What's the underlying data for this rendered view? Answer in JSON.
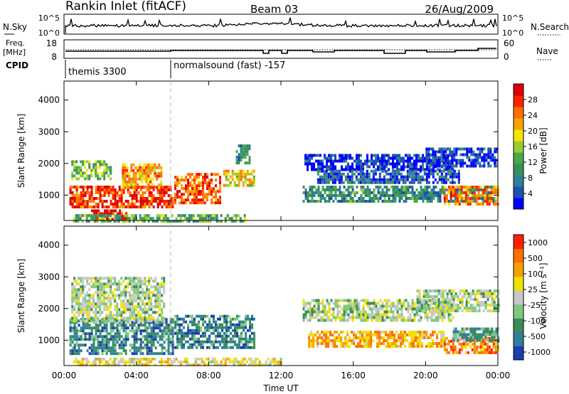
{
  "header": {
    "station": "Rankin Inlet (fitACF)",
    "beam": "Beam 03",
    "date": "26/Aug/2009"
  },
  "nsky_panel": {
    "label": "N.Sky",
    "right_label": "N.Search",
    "y_ticks": [
      "10^5",
      "10^0"
    ],
    "right_ticks": [
      "10^5",
      "10^0"
    ]
  },
  "freq_panel": {
    "label_line1": "Freq.",
    "label_line2": "[MHz]",
    "right_label": "Nave",
    "y_ticks": [
      "18",
      "8"
    ],
    "right_ticks": [
      "60",
      "0"
    ]
  },
  "cpid": {
    "label": "CPID",
    "segments": [
      {
        "start_hour": 0,
        "text": "themis 3300"
      },
      {
        "start_hour": 6,
        "text": "normalsound (fast) -157"
      }
    ]
  },
  "chart_data": [
    {
      "type": "heatmap",
      "title": "",
      "ylabel": "Slant Range [km]",
      "y_ticks": [
        1000,
        2000,
        3000,
        4000
      ],
      "ylim": [
        200,
        4600
      ],
      "x_ticks": [
        "00:00",
        "04:00",
        "08:00",
        "12:00",
        "16:00",
        "20:00",
        "00:00"
      ],
      "xlim_hours": [
        0,
        24
      ],
      "colorbar": {
        "label": "Power [dB]",
        "ticks": [
          "4",
          "8",
          "12",
          "16",
          "20",
          "24",
          "28"
        ],
        "colors": [
          "#0000ff",
          "#1f4fb0",
          "#2f7f9a",
          "#3b8f5a",
          "#46aa46",
          "#9acd32",
          "#f2e600",
          "#f5a300",
          "#ff7000",
          "#ff2000",
          "#dd0000"
        ]
      },
      "regions": [
        {
          "h0": 0.3,
          "h1": 6.0,
          "r0": 600,
          "r1": 1300,
          "level": 0.85
        },
        {
          "h0": 0.4,
          "h1": 2.6,
          "r0": 1500,
          "r1": 2100,
          "level": 0.45
        },
        {
          "h0": 3.2,
          "h1": 5.4,
          "r0": 1200,
          "r1": 2000,
          "level": 0.7
        },
        {
          "h0": 6.1,
          "h1": 8.6,
          "r0": 800,
          "r1": 1700,
          "level": 0.8
        },
        {
          "h0": 8.8,
          "h1": 10.5,
          "r0": 1300,
          "r1": 1800,
          "level": 0.6
        },
        {
          "h0": 9.5,
          "h1": 10.3,
          "r0": 2000,
          "r1": 2600,
          "level": 0.3
        },
        {
          "h0": 13.3,
          "h1": 21.5,
          "r0": 1800,
          "r1": 2300,
          "level": 0.08
        },
        {
          "h0": 14.0,
          "h1": 21.8,
          "r0": 1400,
          "r1": 1800,
          "level": 0.18
        },
        {
          "h0": 13.2,
          "h1": 23.8,
          "r0": 800,
          "r1": 1300,
          "level": 0.3
        },
        {
          "h0": 21.0,
          "h1": 24.0,
          "r0": 700,
          "r1": 1300,
          "level": 0.75
        },
        {
          "h0": 20.0,
          "h1": 24.0,
          "r0": 1900,
          "r1": 2500,
          "level": 0.1
        },
        {
          "h0": 1.5,
          "h1": 3.5,
          "r0": 200,
          "r1": 550,
          "level": 0.95
        },
        {
          "h0": 0.5,
          "h1": 10.0,
          "r0": 200,
          "r1": 400,
          "level": 0.4
        }
      ]
    },
    {
      "type": "heatmap",
      "title": "",
      "ylabel": "Slant Range [km]",
      "xlabel": "Time UT",
      "y_ticks": [
        1000,
        2000,
        3000,
        4000
      ],
      "ylim": [
        200,
        4600
      ],
      "x_ticks": [
        "00:00",
        "04:00",
        "08:00",
        "12:00",
        "16:00",
        "20:00",
        "00:00"
      ],
      "xlim_hours": [
        0,
        24
      ],
      "colorbar": {
        "label": "Velocity [m s⁻¹]",
        "ticks": [
          "1000",
          "500",
          "100",
          "25",
          "-25",
          "-100",
          "-500",
          "-1000"
        ],
        "colors": [
          "#1a3fb0",
          "#2f7f9a",
          "#3a8c5a",
          "#7fc97f",
          "#c8c8c8",
          "#f0e000",
          "#f5a000",
          "#ff7000",
          "#ff2000"
        ]
      },
      "regions": [
        {
          "h0": 0.3,
          "h1": 6.0,
          "r0": 600,
          "r1": 1700,
          "level": 0.22
        },
        {
          "h0": 6.1,
          "h1": 10.5,
          "r0": 800,
          "r1": 1800,
          "level": 0.22
        },
        {
          "h0": 0.4,
          "h1": 5.5,
          "r0": 1600,
          "r1": 3000,
          "level": 0.45
        },
        {
          "h0": 13.2,
          "h1": 21.5,
          "r0": 1600,
          "r1": 2300,
          "level": 0.45
        },
        {
          "h0": 13.5,
          "h1": 21.0,
          "r0": 800,
          "r1": 1300,
          "level": 0.7
        },
        {
          "h0": 21.0,
          "h1": 24.0,
          "r0": 600,
          "r1": 1100,
          "level": 0.8
        },
        {
          "h0": 21.5,
          "h1": 24.0,
          "r0": 1000,
          "r1": 1400,
          "level": 0.3
        },
        {
          "h0": 19.5,
          "h1": 24.0,
          "r0": 1900,
          "r1": 2600,
          "level": 0.45
        },
        {
          "h0": 0.5,
          "h1": 12.0,
          "r0": 200,
          "r1": 450,
          "level": 0.58
        }
      ]
    }
  ]
}
